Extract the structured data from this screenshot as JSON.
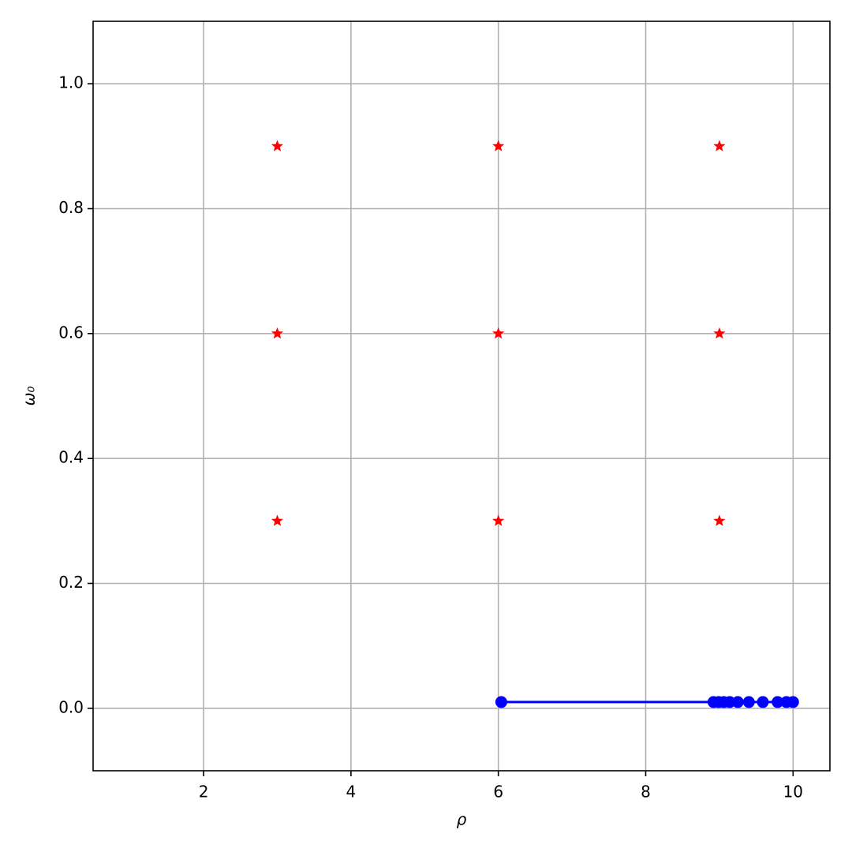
{
  "chart_data": {
    "type": "line",
    "xlabel": "ρ",
    "ylabel": "ω₀",
    "xlim": [
      0.5,
      10.5
    ],
    "xticks": [
      2,
      4,
      6,
      8,
      10
    ],
    "ylim": [
      -0.1,
      1.1
    ],
    "yticks": [
      {
        "value": 0,
        "label": "0.0"
      },
      {
        "value": 0.2,
        "label": "0.2"
      },
      {
        "value": 0.4,
        "label": "0.4"
      },
      {
        "value": 0.6,
        "label": "0.6"
      },
      {
        "value": 0.8,
        "label": "0.8"
      },
      {
        "value": 1,
        "label": "1.0"
      }
    ],
    "grid": true,
    "series": [
      {
        "color": "#ff0000",
        "marker": "star",
        "linestyle": "none",
        "x": [
          3,
          3,
          3,
          6,
          6,
          6,
          9,
          9,
          9
        ],
        "values": [
          0.3,
          0.6,
          0.9,
          0.3,
          0.6,
          0.9,
          0.3,
          0.6,
          0.9
        ]
      },
      {
        "color": "#0000ff",
        "marker": "circle",
        "linestyle": "solid",
        "x": [
          6.04,
          8.92,
          8.99,
          9.06,
          9.14,
          9.25,
          9.4,
          9.59,
          9.79,
          9.91,
          10.0
        ],
        "values": [
          0.01,
          0.01,
          0.01,
          0.01,
          0.01,
          0.01,
          0.01,
          0.01,
          0.01,
          0.01,
          0.01
        ]
      }
    ]
  }
}
